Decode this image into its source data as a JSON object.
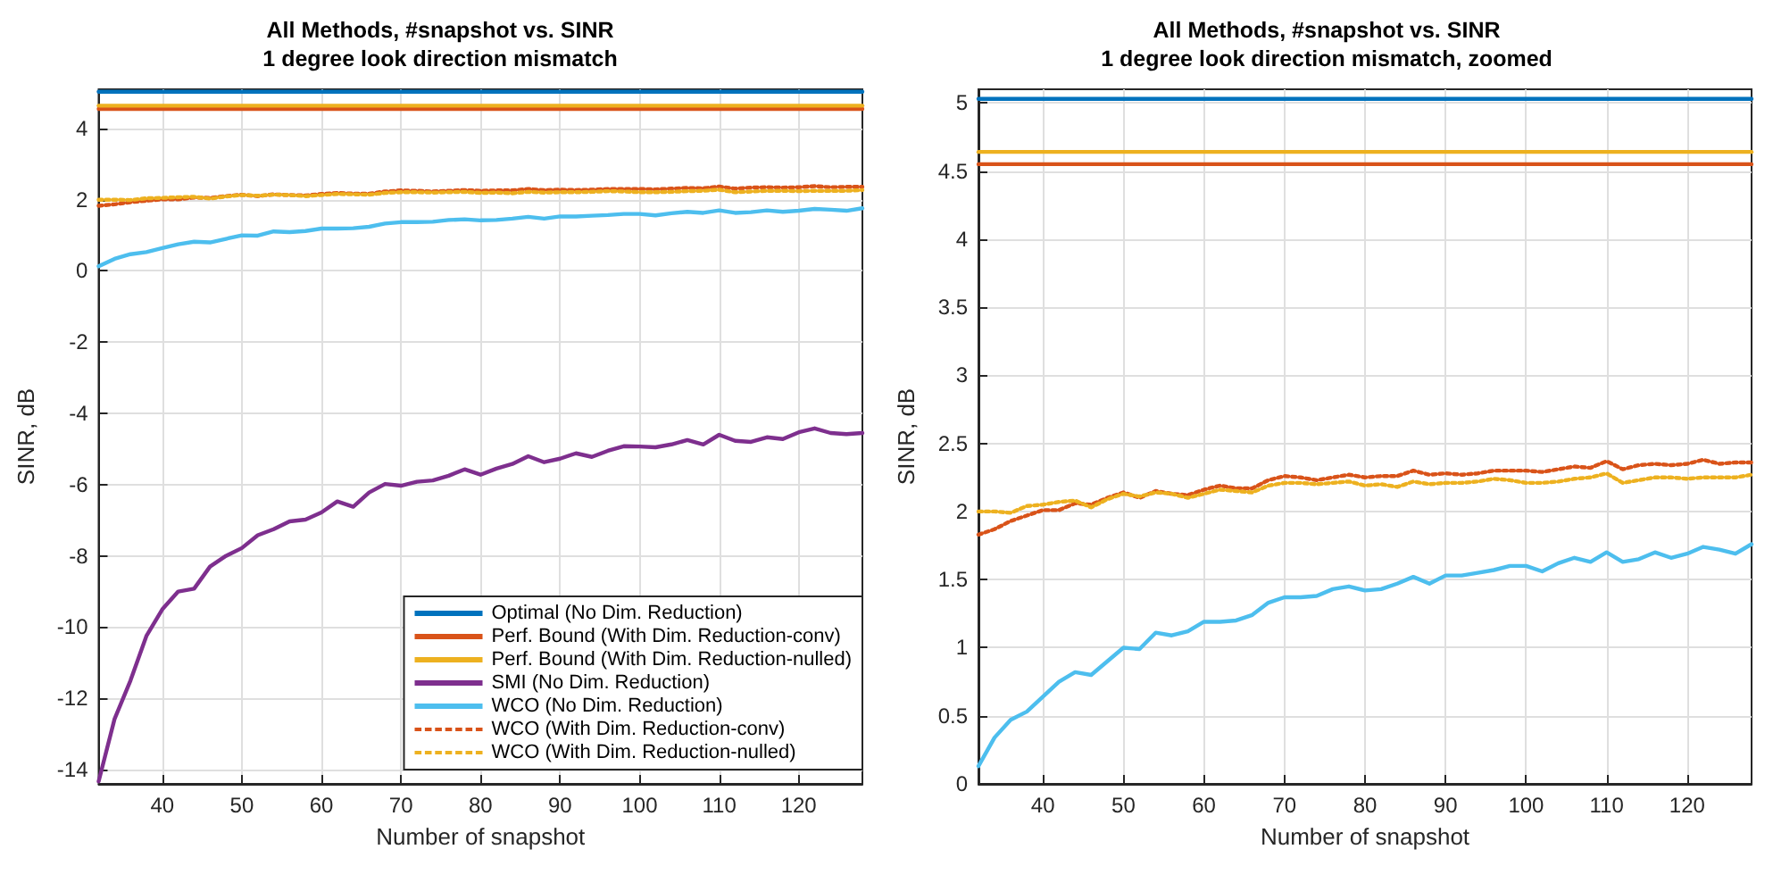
{
  "chart_data": [
    {
      "type": "line",
      "title": "All Methods, #snapshot vs. SINR\n1 degree look direction mismatch",
      "xlabel": "Number of snapshot",
      "ylabel": "SINR, dB",
      "x": [
        32,
        34,
        36,
        38,
        40,
        42,
        44,
        46,
        48,
        50,
        52,
        54,
        56,
        58,
        60,
        62,
        64,
        66,
        68,
        70,
        72,
        74,
        76,
        78,
        80,
        82,
        84,
        86,
        88,
        90,
        92,
        94,
        96,
        98,
        100,
        102,
        104,
        106,
        108,
        110,
        112,
        114,
        116,
        118,
        120,
        122,
        124,
        126,
        128
      ],
      "xlim": [
        32,
        128
      ],
      "xticks": [
        40,
        50,
        60,
        70,
        80,
        90,
        100,
        110,
        120
      ],
      "ylim": [
        -14.4,
        5.1
      ],
      "yticks": [
        -14,
        -12,
        -10,
        -8,
        -6,
        -4,
        -2,
        0,
        2,
        4
      ],
      "grid": true,
      "legend": "bottom right",
      "marker": "none",
      "series": [
        {
          "name": "Optimal (No Dim. Reduction)",
          "color": "#0072bd",
          "line_style": "solid",
          "values": [
            5.03,
            5.03,
            5.03,
            5.03,
            5.03,
            5.03,
            5.03,
            5.03,
            5.03,
            5.03,
            5.03,
            5.03,
            5.03,
            5.03,
            5.03,
            5.03,
            5.03,
            5.03,
            5.03,
            5.03,
            5.03,
            5.03,
            5.03,
            5.03,
            5.03,
            5.03,
            5.03,
            5.03,
            5.03,
            5.03,
            5.03,
            5.03,
            5.03,
            5.03,
            5.03,
            5.03,
            5.03,
            5.03,
            5.03,
            5.03,
            5.03,
            5.03,
            5.03,
            5.03,
            5.03,
            5.03,
            5.03,
            5.03,
            5.03
          ]
        },
        {
          "name": "Perf. Bound (With Dim. Reduction-conv)",
          "color": "#d95319",
          "line_style": "solid",
          "values": [
            4.55,
            4.55,
            4.55,
            4.55,
            4.55,
            4.55,
            4.55,
            4.55,
            4.55,
            4.55,
            4.55,
            4.55,
            4.55,
            4.55,
            4.55,
            4.55,
            4.55,
            4.55,
            4.55,
            4.55,
            4.55,
            4.55,
            4.55,
            4.55,
            4.55,
            4.55,
            4.55,
            4.55,
            4.55,
            4.55,
            4.55,
            4.55,
            4.55,
            4.55,
            4.55,
            4.55,
            4.55,
            4.55,
            4.55,
            4.55,
            4.55,
            4.55,
            4.55,
            4.55,
            4.55,
            4.55,
            4.55,
            4.55,
            4.55
          ]
        },
        {
          "name": "Perf. Bound (With Dim. Reduction-nulled)",
          "color": "#edb120",
          "line_style": "solid",
          "values": [
            4.64,
            4.64,
            4.64,
            4.64,
            4.64,
            4.64,
            4.64,
            4.64,
            4.64,
            4.64,
            4.64,
            4.64,
            4.64,
            4.64,
            4.64,
            4.64,
            4.64,
            4.64,
            4.64,
            4.64,
            4.64,
            4.64,
            4.64,
            4.64,
            4.64,
            4.64,
            4.64,
            4.64,
            4.64,
            4.64,
            4.64,
            4.64,
            4.64,
            4.64,
            4.64,
            4.64,
            4.64,
            4.64,
            4.64,
            4.64,
            4.64,
            4.64,
            4.64,
            4.64,
            4.64,
            4.64,
            4.64,
            4.64,
            4.64
          ]
        },
        {
          "name": "SMI (No Dim. Reduction)",
          "color": "#7e2f8e",
          "line_style": "solid",
          "values": [
            -14.33,
            -12.58,
            -11.5,
            -10.25,
            -9.5,
            -9.0,
            -8.92,
            -8.3,
            -8.0,
            -7.78,
            -7.42,
            -7.25,
            -7.03,
            -6.98,
            -6.78,
            -6.47,
            -6.62,
            -6.22,
            -5.98,
            -6.03,
            -5.92,
            -5.88,
            -5.75,
            -5.57,
            -5.72,
            -5.55,
            -5.42,
            -5.2,
            -5.37,
            -5.27,
            -5.12,
            -5.22,
            -5.05,
            -4.92,
            -4.93,
            -4.95,
            -4.87,
            -4.75,
            -4.87,
            -4.6,
            -4.77,
            -4.8,
            -4.67,
            -4.72,
            -4.53,
            -4.42,
            -4.55,
            -4.58,
            -4.55
          ]
        },
        {
          "name": "WCO (No Dim. Reduction)",
          "color": "#4dbeee",
          "line_style": "solid",
          "values": [
            0.13,
            0.34,
            0.47,
            0.53,
            0.64,
            0.75,
            0.82,
            0.8,
            0.9,
            1.0,
            0.99,
            1.11,
            1.09,
            1.12,
            1.19,
            1.19,
            1.2,
            1.24,
            1.33,
            1.37,
            1.37,
            1.38,
            1.43,
            1.45,
            1.42,
            1.43,
            1.47,
            1.52,
            1.47,
            1.53,
            1.53,
            1.55,
            1.57,
            1.6,
            1.6,
            1.56,
            1.62,
            1.66,
            1.63,
            1.7,
            1.63,
            1.65,
            1.7,
            1.66,
            1.69,
            1.74,
            1.72,
            1.69,
            1.76
          ]
        },
        {
          "name": "WCO (With Dim. Reduction-conv)",
          "color": "#d95319",
          "line_style": "dotted",
          "values": [
            1.83,
            1.87,
            1.93,
            1.97,
            2.01,
            2.01,
            2.06,
            2.05,
            2.1,
            2.14,
            2.1,
            2.15,
            2.13,
            2.12,
            2.16,
            2.19,
            2.17,
            2.17,
            2.23,
            2.26,
            2.25,
            2.23,
            2.25,
            2.27,
            2.25,
            2.26,
            2.26,
            2.3,
            2.27,
            2.28,
            2.27,
            2.28,
            2.3,
            2.3,
            2.3,
            2.29,
            2.31,
            2.33,
            2.32,
            2.37,
            2.31,
            2.34,
            2.35,
            2.34,
            2.35,
            2.38,
            2.35,
            2.36,
            2.36
          ]
        },
        {
          "name": "WCO (With Dim. Reduction-nulled)",
          "color": "#edb120",
          "line_style": "dotted",
          "values": [
            2.0,
            2.0,
            1.99,
            2.04,
            2.05,
            2.07,
            2.08,
            2.03,
            2.09,
            2.13,
            2.11,
            2.14,
            2.13,
            2.1,
            2.13,
            2.16,
            2.15,
            2.14,
            2.19,
            2.21,
            2.21,
            2.2,
            2.21,
            2.22,
            2.19,
            2.2,
            2.18,
            2.22,
            2.2,
            2.21,
            2.21,
            2.22,
            2.24,
            2.23,
            2.21,
            2.21,
            2.22,
            2.24,
            2.25,
            2.28,
            2.21,
            2.23,
            2.25,
            2.25,
            2.24,
            2.25,
            2.25,
            2.25,
            2.27
          ]
        }
      ]
    },
    {
      "type": "line",
      "title": "All Methods, #snapshot vs. SINR\n1 degree look direction mismatch, zoomed",
      "xlabel": "Number of snapshot",
      "ylabel": "SINR, dB",
      "x": [
        32,
        34,
        36,
        38,
        40,
        42,
        44,
        46,
        48,
        50,
        52,
        54,
        56,
        58,
        60,
        62,
        64,
        66,
        68,
        70,
        72,
        74,
        76,
        78,
        80,
        82,
        84,
        86,
        88,
        90,
        92,
        94,
        96,
        98,
        100,
        102,
        104,
        106,
        108,
        110,
        112,
        114,
        116,
        118,
        120,
        122,
        124,
        126,
        128
      ],
      "xlim": [
        32,
        128
      ],
      "xticks": [
        40,
        50,
        60,
        70,
        80,
        90,
        100,
        110,
        120
      ],
      "ylim": [
        0,
        5.1
      ],
      "yticks": [
        0,
        0.5,
        1,
        1.5,
        2,
        2.5,
        3,
        3.5,
        4,
        4.5,
        5
      ],
      "grid": true,
      "marker": "none",
      "series": [
        {
          "color": "#0072bd",
          "line_style": "solid",
          "values": [
            5.03,
            5.03,
            5.03,
            5.03,
            5.03,
            5.03,
            5.03,
            5.03,
            5.03,
            5.03,
            5.03,
            5.03,
            5.03,
            5.03,
            5.03,
            5.03,
            5.03,
            5.03,
            5.03,
            5.03,
            5.03,
            5.03,
            5.03,
            5.03,
            5.03,
            5.03,
            5.03,
            5.03,
            5.03,
            5.03,
            5.03,
            5.03,
            5.03,
            5.03,
            5.03,
            5.03,
            5.03,
            5.03,
            5.03,
            5.03,
            5.03,
            5.03,
            5.03,
            5.03,
            5.03,
            5.03,
            5.03,
            5.03,
            5.03
          ]
        },
        {
          "color": "#d95319",
          "line_style": "solid",
          "values": [
            4.55,
            4.55,
            4.55,
            4.55,
            4.55,
            4.55,
            4.55,
            4.55,
            4.55,
            4.55,
            4.55,
            4.55,
            4.55,
            4.55,
            4.55,
            4.55,
            4.55,
            4.55,
            4.55,
            4.55,
            4.55,
            4.55,
            4.55,
            4.55,
            4.55,
            4.55,
            4.55,
            4.55,
            4.55,
            4.55,
            4.55,
            4.55,
            4.55,
            4.55,
            4.55,
            4.55,
            4.55,
            4.55,
            4.55,
            4.55,
            4.55,
            4.55,
            4.55,
            4.55,
            4.55,
            4.55,
            4.55,
            4.55,
            4.55
          ]
        },
        {
          "color": "#edb120",
          "line_style": "solid",
          "values": [
            4.64,
            4.64,
            4.64,
            4.64,
            4.64,
            4.64,
            4.64,
            4.64,
            4.64,
            4.64,
            4.64,
            4.64,
            4.64,
            4.64,
            4.64,
            4.64,
            4.64,
            4.64,
            4.64,
            4.64,
            4.64,
            4.64,
            4.64,
            4.64,
            4.64,
            4.64,
            4.64,
            4.64,
            4.64,
            4.64,
            4.64,
            4.64,
            4.64,
            4.64,
            4.64,
            4.64,
            4.64,
            4.64,
            4.64,
            4.64,
            4.64,
            4.64,
            4.64,
            4.64,
            4.64,
            4.64,
            4.64,
            4.64,
            4.64
          ]
        },
        {
          "color": "#4dbeee",
          "line_style": "solid",
          "values": [
            0.13,
            0.34,
            0.47,
            0.53,
            0.64,
            0.75,
            0.82,
            0.8,
            0.9,
            1.0,
            0.99,
            1.11,
            1.09,
            1.12,
            1.19,
            1.19,
            1.2,
            1.24,
            1.33,
            1.37,
            1.37,
            1.38,
            1.43,
            1.45,
            1.42,
            1.43,
            1.47,
            1.52,
            1.47,
            1.53,
            1.53,
            1.55,
            1.57,
            1.6,
            1.6,
            1.56,
            1.62,
            1.66,
            1.63,
            1.7,
            1.63,
            1.65,
            1.7,
            1.66,
            1.69,
            1.74,
            1.72,
            1.69,
            1.76
          ]
        },
        {
          "color": "#d95319",
          "line_style": "dotted",
          "values": [
            1.83,
            1.87,
            1.93,
            1.97,
            2.01,
            2.01,
            2.06,
            2.05,
            2.1,
            2.14,
            2.1,
            2.15,
            2.13,
            2.12,
            2.16,
            2.19,
            2.17,
            2.17,
            2.23,
            2.26,
            2.25,
            2.23,
            2.25,
            2.27,
            2.25,
            2.26,
            2.26,
            2.3,
            2.27,
            2.28,
            2.27,
            2.28,
            2.3,
            2.3,
            2.3,
            2.29,
            2.31,
            2.33,
            2.32,
            2.37,
            2.31,
            2.34,
            2.35,
            2.34,
            2.35,
            2.38,
            2.35,
            2.36,
            2.36
          ]
        },
        {
          "color": "#edb120",
          "line_style": "dotted",
          "values": [
            2.0,
            2.0,
            1.99,
            2.04,
            2.05,
            2.07,
            2.08,
            2.03,
            2.09,
            2.13,
            2.11,
            2.14,
            2.13,
            2.1,
            2.13,
            2.16,
            2.15,
            2.14,
            2.19,
            2.21,
            2.21,
            2.2,
            2.21,
            2.22,
            2.19,
            2.2,
            2.18,
            2.22,
            2.2,
            2.21,
            2.21,
            2.22,
            2.24,
            2.23,
            2.21,
            2.21,
            2.22,
            2.24,
            2.25,
            2.28,
            2.21,
            2.23,
            2.25,
            2.25,
            2.24,
            2.25,
            2.25,
            2.25,
            2.27
          ]
        }
      ]
    }
  ]
}
